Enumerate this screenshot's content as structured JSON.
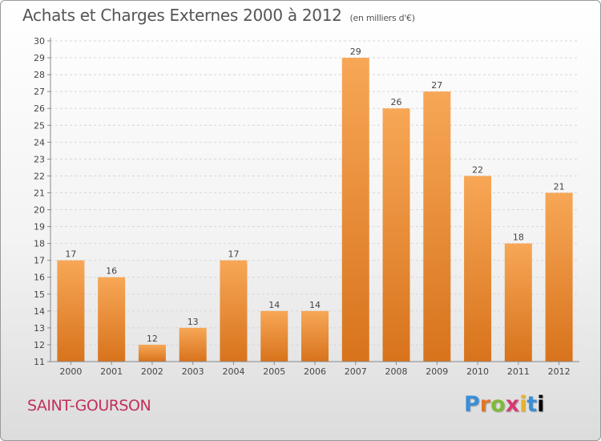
{
  "header": {
    "title": "Achats et Charges Externes 2000 à 2012",
    "unit": "(en milliers d'€)"
  },
  "footer": {
    "place": "SAINT-GOURSON",
    "logo": [
      "P",
      "r",
      "o",
      "x",
      "i",
      "t",
      "i"
    ]
  },
  "chart_data": {
    "type": "bar",
    "title": "Achats et Charges Externes 2000 à 2012",
    "subtitle": "(en milliers d'€)",
    "categories": [
      "2000",
      "2001",
      "2002",
      "2003",
      "2004",
      "2005",
      "2006",
      "2007",
      "2008",
      "2009",
      "2010",
      "2011",
      "2012"
    ],
    "values": [
      17,
      16,
      12,
      13,
      17,
      14,
      14,
      29,
      26,
      27,
      22,
      18,
      21
    ],
    "data_labels": [
      "17",
      "16",
      "12",
      "13",
      "17",
      "14",
      "14",
      "29",
      "26",
      "27",
      "22",
      "18",
      "21"
    ],
    "ylim": [
      11,
      30
    ],
    "yticks": [
      "11",
      "12",
      "13",
      "14",
      "15",
      "16",
      "17",
      "18",
      "19",
      "20",
      "21",
      "22",
      "23",
      "24",
      "25",
      "26",
      "27",
      "28",
      "29",
      "30"
    ],
    "xlabel": "",
    "ylabel": "",
    "grid": true,
    "legend": "none",
    "colors": {
      "bar_light": "#f7a756",
      "bar_dark": "#d8731c",
      "grid": "#d7d7d7",
      "axis": "#888888"
    }
  }
}
